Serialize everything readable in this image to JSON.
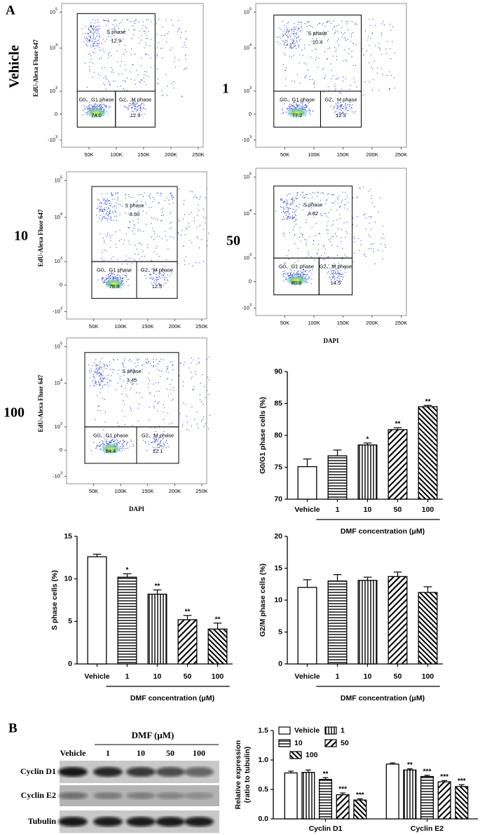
{
  "panel_labels": {
    "a": "A",
    "b": "B"
  },
  "flow_axes": {
    "x_ticks": [
      "50K",
      "100K",
      "150K",
      "200K",
      "250K"
    ],
    "y_ticks": [
      {
        "base": "10",
        "exp": "5"
      },
      {
        "base": "10",
        "exp": "4"
      },
      {
        "base": "10",
        "exp": "3"
      },
      "0",
      {
        "base": "-10",
        "exp": "3"
      }
    ]
  },
  "flow_plots": [
    {
      "row_label": "Vehicle",
      "y_axis_label": "EdU-Alexa Fluor 647",
      "gates": {
        "s": {
          "name": "S phase",
          "value": "12.9"
        },
        "g1": {
          "name": "G0、G1 phase",
          "value": "74.0"
        },
        "g2": {
          "name": "G2、M phase",
          "value": "12.9"
        }
      }
    },
    {
      "row_label": "1",
      "gates": {
        "s": {
          "name": "S phase",
          "value": "10.4"
        },
        "g1": {
          "name": "G0、G1 phase",
          "value": "77.2"
        },
        "g2": {
          "name": "G2、M phase",
          "value": "12.3"
        }
      }
    },
    {
      "row_label": "10",
      "y_axis_label": "EdU-Alexa Fluor 647",
      "gates": {
        "s": {
          "name": "S phase",
          "value": "8.60"
        },
        "g1": {
          "name": "G0、G1 phase",
          "value": "78.8"
        },
        "g2": {
          "name": "G2、M phase",
          "value": "12.5"
        }
      }
    },
    {
      "row_label": "50",
      "x_axis_label": "DAPI",
      "gates": {
        "s": {
          "name": "S phase",
          "value": "4.62"
        },
        "g1": {
          "name": "G0、G1 phase",
          "value": "80.8"
        },
        "g2": {
          "name": "G2、M phase",
          "value": "14.5"
        }
      }
    },
    {
      "row_label": "100",
      "y_axis_label": "EdU-Alexa Fluor 647",
      "x_axis_label": "DAPI",
      "gates": {
        "s": {
          "name": "S phase",
          "value": "3.45"
        },
        "g1": {
          "name": "G0、G1 phase",
          "value": "84.4"
        },
        "g2": {
          "name": "G2、M phase",
          "value": "12.1"
        }
      }
    }
  ],
  "western_blot": {
    "treatment_label": "DMF (μM)",
    "lanes": [
      "Vehicle",
      "1",
      "10",
      "50",
      "100"
    ],
    "proteins": [
      "Cyclin D1",
      "Cyclin E2",
      "Tubulin"
    ]
  },
  "chart_data": [
    {
      "type": "bar",
      "ylabel": "G0/G1 phase cells (%)",
      "xlabel": "DMF concentration (μM)",
      "categories": [
        "Vehicle",
        "1",
        "10",
        "50",
        "100"
      ],
      "values": [
        75.1,
        76.8,
        78.5,
        80.9,
        84.5
      ],
      "errors": [
        1.2,
        0.9,
        0.3,
        0.3,
        0.2
      ],
      "significance": [
        null,
        null,
        "*",
        "**",
        "**"
      ],
      "patterns": [
        "open",
        "horizontal",
        "vertical",
        "diagonal",
        "back-diagonal"
      ],
      "color": "#000000",
      "ylim": [
        70,
        90
      ],
      "yticks": [
        70,
        75,
        80,
        85,
        90
      ]
    },
    {
      "type": "bar",
      "ylabel": "S phase cells (%)",
      "xlabel": "DMF concentration (μM)",
      "categories": [
        "Vehicle",
        "1",
        "10",
        "50",
        "100"
      ],
      "values": [
        12.6,
        10.2,
        8.2,
        5.2,
        4.1
      ],
      "errors": [
        0.3,
        0.4,
        0.5,
        0.5,
        0.7
      ],
      "significance": [
        null,
        "*",
        "**",
        "**",
        "**"
      ],
      "patterns": [
        "open",
        "horizontal",
        "vertical",
        "diagonal",
        "back-diagonal"
      ],
      "color": "#000000",
      "ylim": [
        0,
        15
      ],
      "yticks": [
        0,
        5,
        10,
        15
      ]
    },
    {
      "type": "bar",
      "ylabel": "G2/M phase cells (%)",
      "xlabel": "DMF concentration (μM)",
      "categories": [
        "Vehicle",
        "1",
        "10",
        "50",
        "100"
      ],
      "values": [
        12.0,
        13.0,
        13.1,
        13.7,
        11.2
      ],
      "errors": [
        1.2,
        1.0,
        0.5,
        0.7,
        0.9
      ],
      "patterns": [
        "open",
        "horizontal",
        "vertical",
        "diagonal",
        "back-diagonal"
      ],
      "color": "#000000",
      "ylim": [
        0,
        20
      ],
      "yticks": [
        0,
        5,
        10,
        15,
        20
      ]
    },
    {
      "type": "bar",
      "ylabel": [
        "Relative expression",
        "(ratio to tubulin)"
      ],
      "categories": [
        "Cyclin D1",
        "Cyclin E2"
      ],
      "color": "#000000",
      "series": [
        {
          "name": "Vehicle",
          "pattern": "open",
          "values": [
            0.78,
            0.93
          ],
          "errors": [
            0.03,
            0.02
          ],
          "significance": [
            null,
            null
          ]
        },
        {
          "name": "1",
          "pattern": "vertical",
          "values": [
            0.79,
            0.83
          ],
          "errors": [
            0.04,
            0.02
          ],
          "significance": [
            null,
            "**"
          ]
        },
        {
          "name": "10",
          "pattern": "horizontal",
          "values": [
            0.67,
            0.72
          ],
          "errors": [
            0.03,
            0.02
          ],
          "significance": [
            "**",
            "***"
          ]
        },
        {
          "name": "50",
          "pattern": "diagonal",
          "values": [
            0.41,
            0.63
          ],
          "errors": [
            0.03,
            0.02
          ],
          "significance": [
            "***",
            "***"
          ]
        },
        {
          "name": "100",
          "pattern": "back-diagonal",
          "values": [
            0.32,
            0.55
          ],
          "errors": [
            0.02,
            0.03
          ],
          "significance": [
            "***",
            "***"
          ]
        }
      ],
      "ylim": [
        0,
        1.5
      ],
      "yticks": [
        {
          "value": 0,
          "label": "0.0"
        },
        0.5,
        {
          "value": 1,
          "label": "1.0"
        },
        1.5
      ]
    }
  ]
}
